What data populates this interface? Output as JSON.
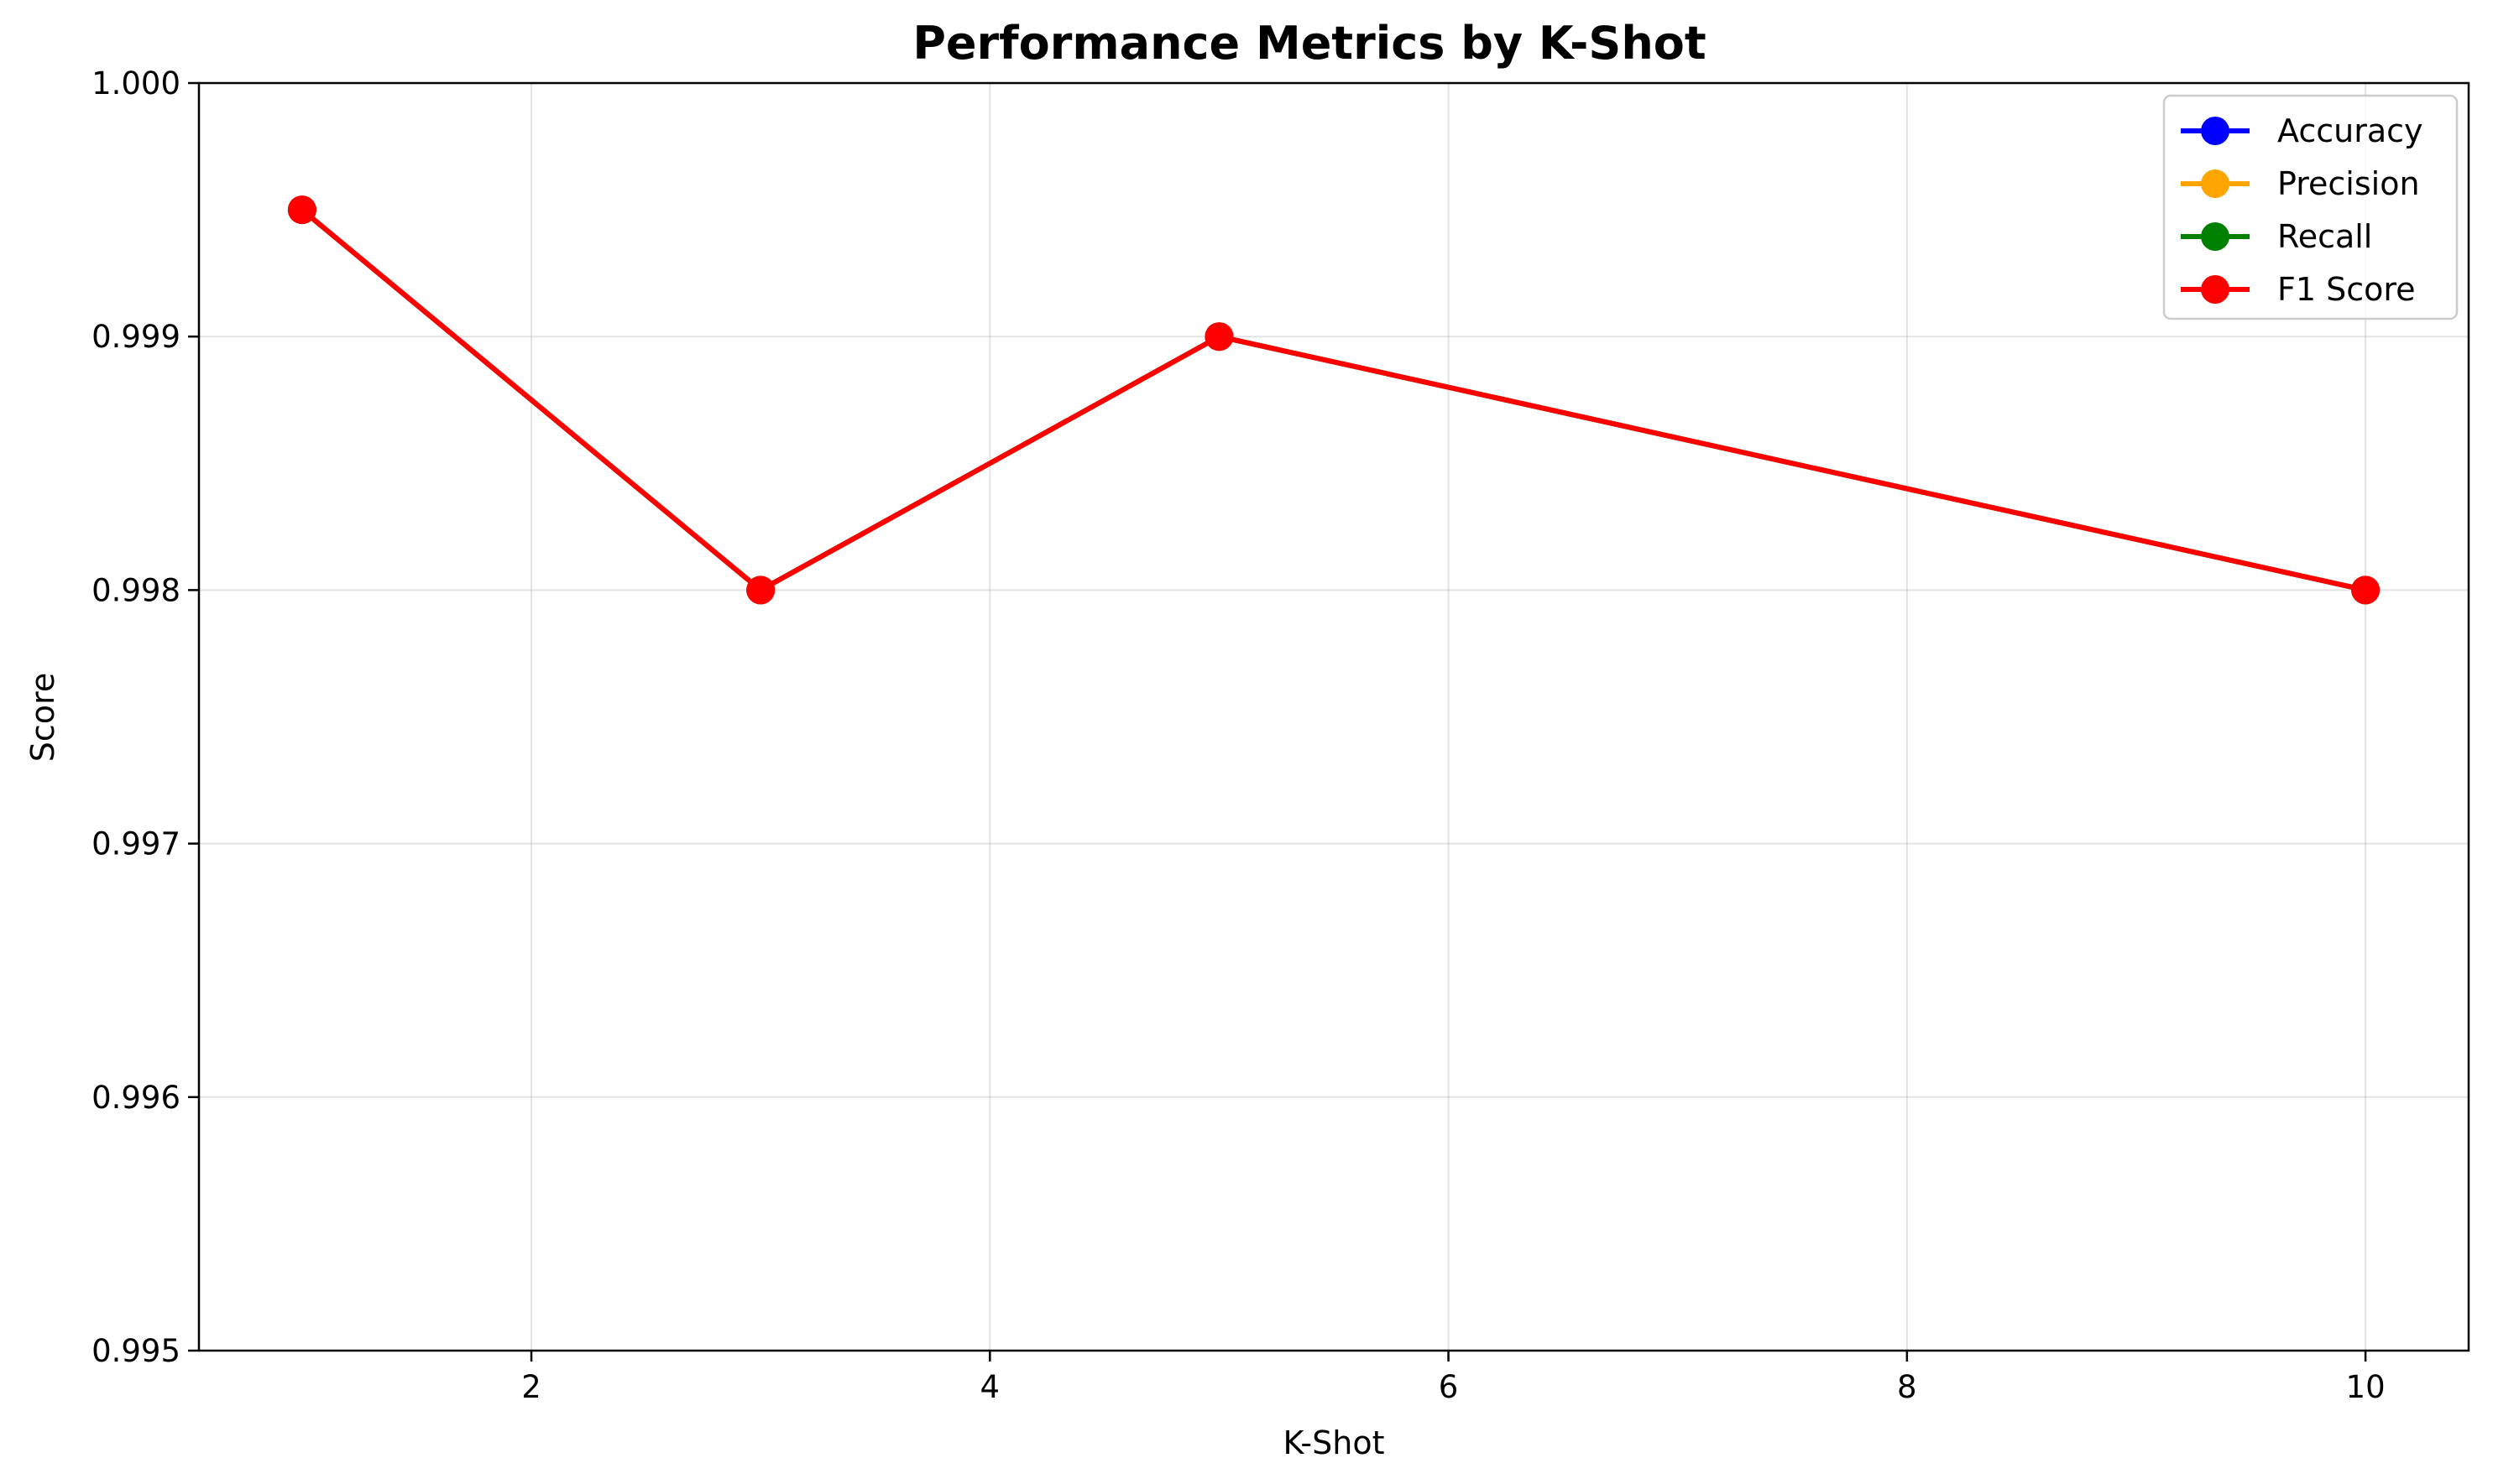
{
  "chart_data": {
    "type": "line",
    "title": "Performance Metrics by K-Shot",
    "xlabel": "K-Shot",
    "ylabel": "Score",
    "x": [
      1,
      3,
      5,
      10
    ],
    "xlim": [
      0.55,
      10.45
    ],
    "ylim": [
      0.995,
      1.0
    ],
    "xticks": [
      2,
      4,
      6,
      8,
      10
    ],
    "xtick_labels": [
      "2",
      "4",
      "6",
      "8",
      "10"
    ],
    "yticks": [
      0.995,
      0.996,
      0.997,
      0.998,
      0.999,
      1.0
    ],
    "ytick_labels": [
      "0.995",
      "0.996",
      "0.997",
      "0.998",
      "0.999",
      "1.000"
    ],
    "grid": true,
    "legend_position": "top-right",
    "series": [
      {
        "name": "Accuracy",
        "color": "#0000ff",
        "values": [
          0.9995,
          0.998,
          0.999,
          0.998
        ]
      },
      {
        "name": "Precision",
        "color": "#ffa500",
        "values": [
          0.9995,
          0.998,
          0.999,
          0.998
        ]
      },
      {
        "name": "Recall",
        "color": "#008000",
        "values": [
          0.9995,
          0.998,
          0.999,
          0.998
        ]
      },
      {
        "name": "F1 Score",
        "color": "#ff0000",
        "values": [
          0.9995,
          0.998,
          0.999,
          0.998
        ]
      }
    ]
  }
}
